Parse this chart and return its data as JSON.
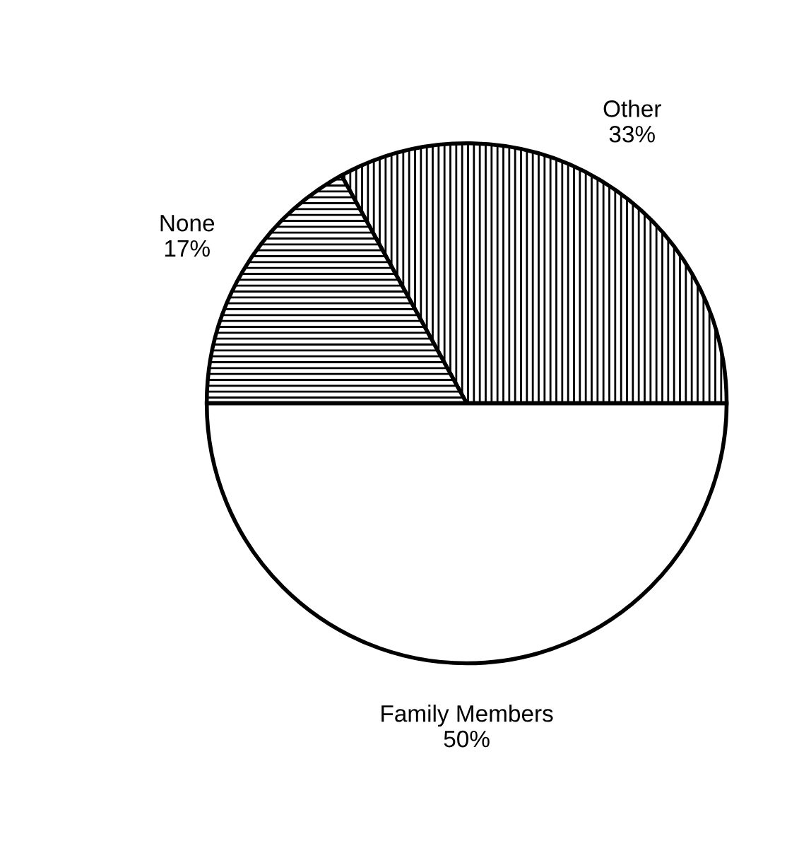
{
  "chart_data": {
    "type": "pie",
    "categories": [
      "Other",
      "None",
      "Family Members"
    ],
    "values": [
      33,
      17,
      50
    ],
    "value_labels": [
      "33%",
      "17%",
      "50%"
    ],
    "colors": [
      "#000000",
      "#000000",
      "#ffffff"
    ]
  }
}
